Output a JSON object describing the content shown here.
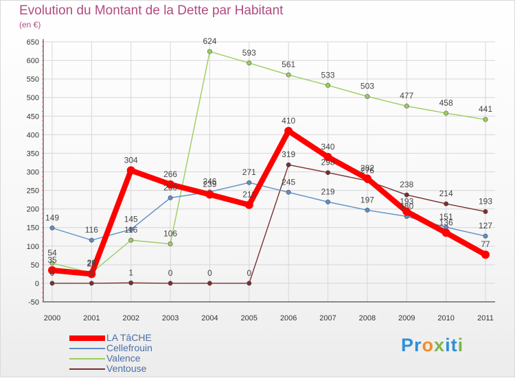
{
  "title": "Evolution du Montant de la Dette par Habitant",
  "subtitle": "(en €)",
  "logo": "Proxiti",
  "logo_letters": [
    {
      "ch": "P",
      "color": "#2f8fd8"
    },
    {
      "ch": "r",
      "color": "#2f8fd8"
    },
    {
      "ch": "o",
      "color": "#f28c28"
    },
    {
      "ch": "x",
      "color": "#7ab648"
    },
    {
      "ch": "i",
      "color": "#2f8fd8"
    },
    {
      "ch": "t",
      "color": "#2f8fd8"
    },
    {
      "ch": "i",
      "color": "#7ab648"
    }
  ],
  "chart_data": {
    "type": "line",
    "title": "Evolution du Montant de la Dette par Habitant",
    "ylabel": "(en €)",
    "xlabel": "",
    "ylim": [
      -50,
      650
    ],
    "yticks": [
      -50,
      0,
      50,
      100,
      150,
      200,
      250,
      300,
      350,
      400,
      450,
      500,
      550,
      600,
      650
    ],
    "categories": [
      "2000",
      "2001",
      "2002",
      "2003",
      "2004",
      "2005",
      "2006",
      "2007",
      "2008",
      "2009",
      "2010",
      "2011"
    ],
    "grid": true,
    "legend_position": "bottom-left",
    "series": [
      {
        "name": "LA TâCHE",
        "color": "#ff0000",
        "values": [
          35,
          25,
          304,
          266,
          239,
          211,
          410,
          340,
          282,
          193,
          136,
          77
        ]
      },
      {
        "name": "Cellefrouin",
        "color": "#5b8ec7",
        "values": [
          149,
          116,
          145,
          230,
          246,
          271,
          245,
          219,
          197,
          180,
          151,
          127
        ]
      },
      {
        "name": "Valence",
        "color": "#9acd60",
        "values": [
          54,
          28,
          116,
          106,
          624,
          593,
          561,
          533,
          503,
          477,
          458,
          441
        ]
      },
      {
        "name": "Ventouse",
        "color": "#7a2e2e",
        "values": [
          0,
          0,
          1,
          0,
          0,
          0,
          319,
          298,
          276,
          238,
          214,
          193
        ]
      }
    ],
    "data_labels": {
      "LA TâCHE": [
        "35",
        "25",
        "304",
        "266",
        "239",
        "211",
        "410",
        "340",
        "282",
        "193",
        "136",
        "77"
      ],
      "Cellefrouin": [
        "149",
        "116",
        "145",
        "230",
        "246",
        "271",
        "245",
        "219",
        "197",
        "180",
        "151",
        "127"
      ],
      "Valence": [
        "54",
        "28",
        "116",
        "106",
        "624",
        "593",
        "561",
        "533",
        "503",
        "477",
        "458",
        "441"
      ],
      "Ventouse": [
        "0",
        "0",
        "1",
        "0",
        "0",
        "0",
        "319",
        "298",
        "276",
        "238",
        "214",
        "193"
      ]
    }
  }
}
